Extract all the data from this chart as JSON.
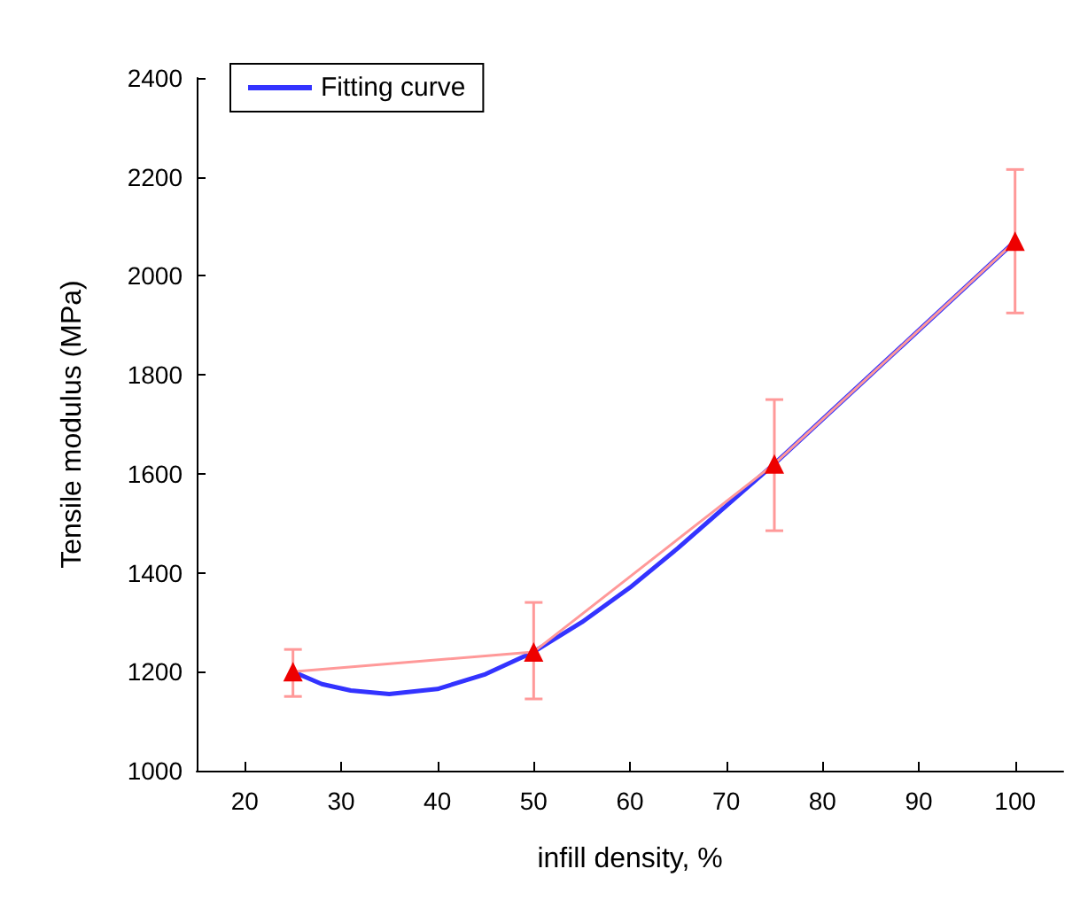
{
  "chart_data": {
    "type": "line",
    "xlabel": "infill density, %",
    "ylabel": "Tensile modulus (MPa)",
    "x": [
      25,
      50,
      75,
      100
    ],
    "series": [
      {
        "color": "#ff9999",
        "values": [
          1200,
          1240,
          1620,
          2070
        ],
        "errors": [
          [
            1150,
            1245
          ],
          [
            1145,
            1340
          ],
          [
            1485,
            1750
          ],
          [
            1925,
            2215
          ]
        ],
        "marker": "triangle"
      },
      {
        "name": "Fitting curve",
        "color": "#3333ff",
        "x": [
          25,
          28,
          31,
          35,
          40,
          45,
          50,
          55,
          60,
          65,
          70,
          75,
          80,
          85,
          90,
          95,
          100
        ],
        "values": [
          1200,
          1175,
          1162,
          1155,
          1165,
          1195,
          1240,
          1300,
          1370,
          1450,
          1535,
          1620,
          1710,
          1800,
          1890,
          1980,
          2070
        ],
        "marker": "none"
      }
    ],
    "xlim": [
      15,
      105
    ],
    "xticks": [
      20,
      30,
      40,
      50,
      60,
      70,
      80,
      90,
      100
    ],
    "ylim": [
      1000,
      2400
    ],
    "yticks": [
      1000,
      1200,
      1400,
      1600,
      1800,
      2000,
      2200,
      2400
    ],
    "grid": false,
    "legend": "top left"
  }
}
